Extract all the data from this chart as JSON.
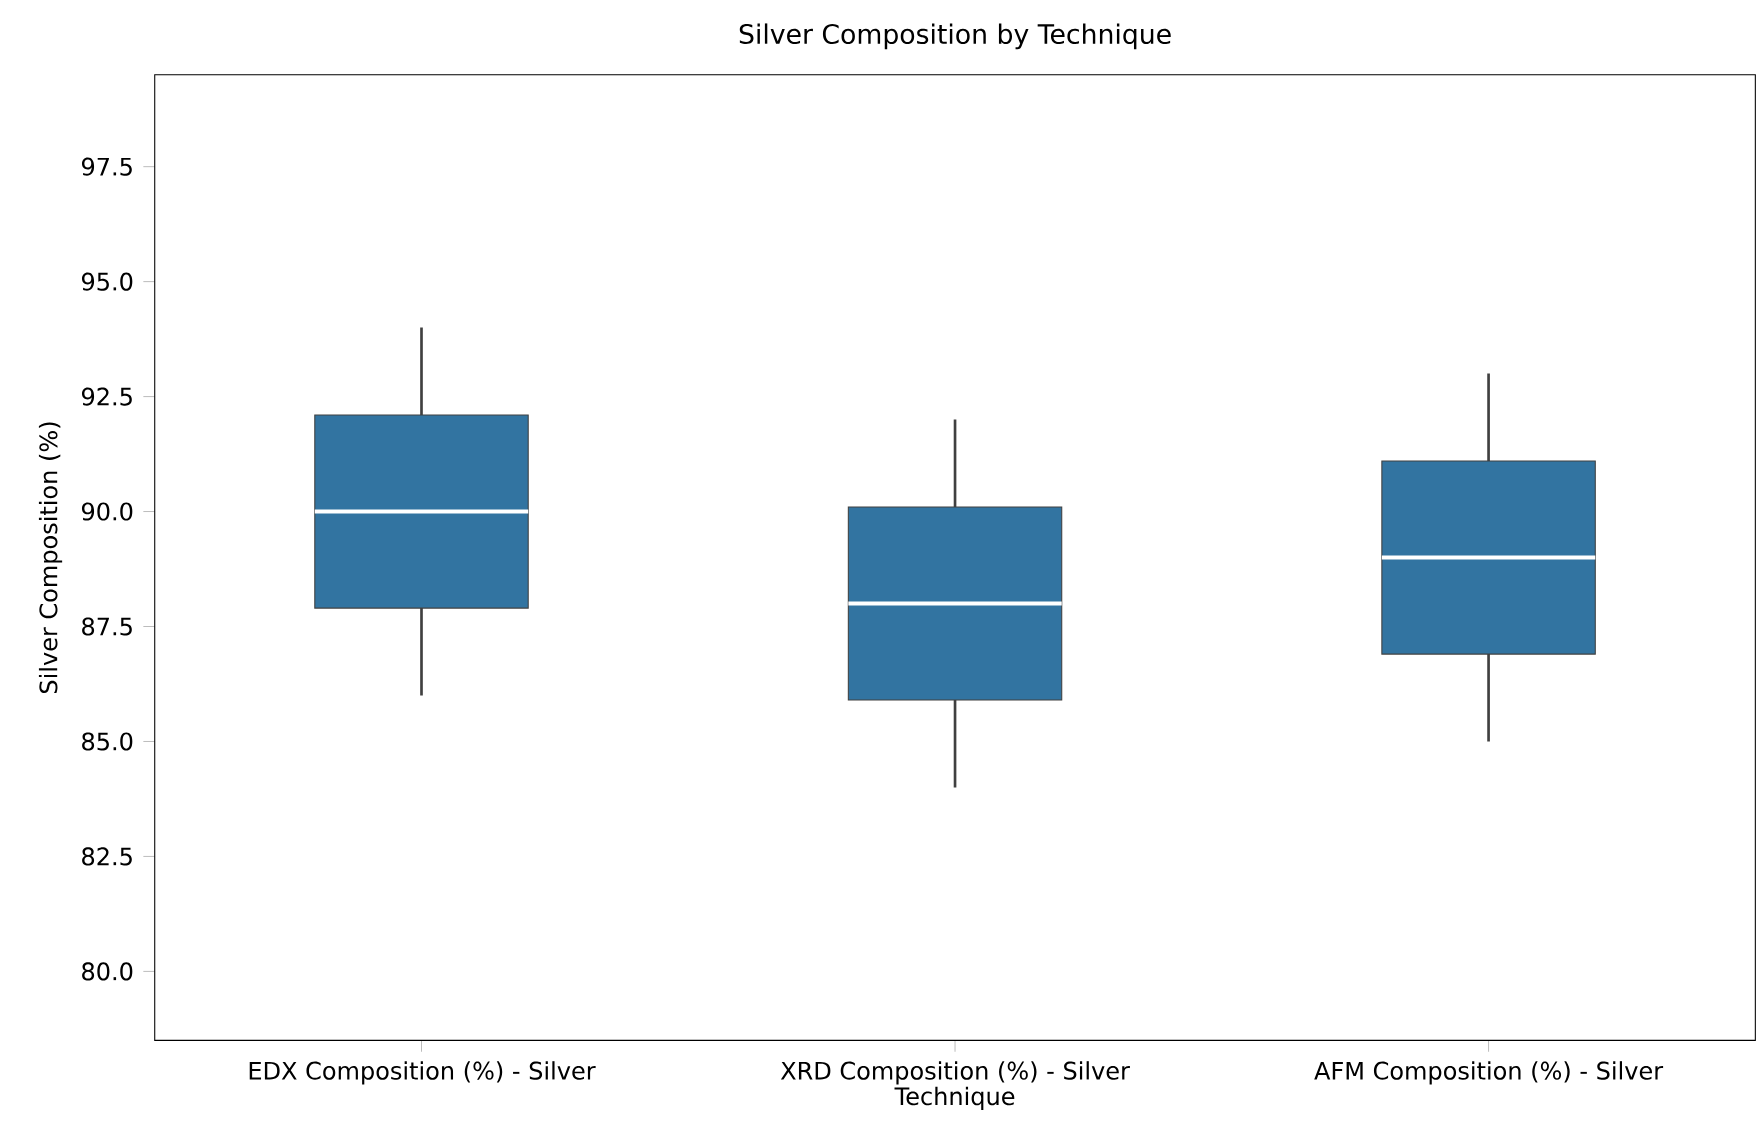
{
  "chart_data": {
    "type": "box",
    "title": "Silver Composition by Technique",
    "xlabel": "Technique",
    "ylabel": "Silver Composition (%)",
    "categories": [
      "EDX Composition (%) - Silver",
      "XRD Composition (%) - Silver",
      "AFM Composition (%) - Silver"
    ],
    "series": [
      {
        "color": "#3274a1",
        "boxes": [
          {
            "low": 86,
            "q1": 87.9,
            "median": 90,
            "q3": 92.1,
            "high": 94
          },
          {
            "low": 84,
            "q1": 85.9,
            "median": 88,
            "q3": 90.1,
            "high": 92
          },
          {
            "low": 85,
            "q1": 86.9,
            "median": 89,
            "q3": 91.1,
            "high": 93
          }
        ]
      }
    ],
    "ylim": [
      78.5,
      99.5
    ],
    "yticks": [
      {
        "value": 80,
        "label": "80.0"
      },
      {
        "value": 82.5,
        "label": "82.5"
      },
      {
        "value": 85,
        "label": "85.0"
      },
      {
        "value": 87.5,
        "label": "87.5"
      },
      {
        "value": 90,
        "label": "90.0"
      },
      {
        "value": 92.5,
        "label": "92.5"
      },
      {
        "value": 95,
        "label": "95.0"
      },
      {
        "value": 97.5,
        "label": "97.5"
      }
    ],
    "grid": false
  }
}
